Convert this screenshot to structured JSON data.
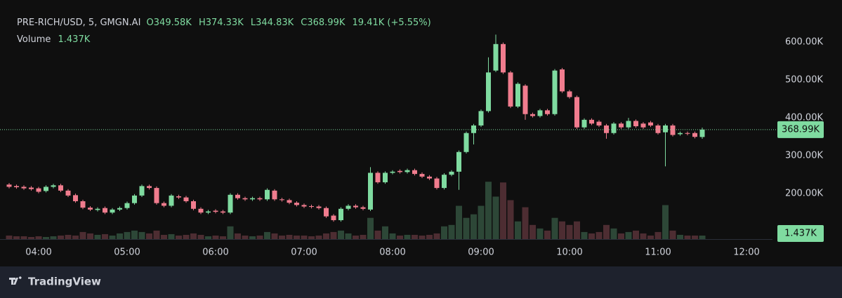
{
  "header": {
    "symbol": "PRE-RICH/USD, 5, GMGN.AI",
    "open": "O349.58K",
    "high": "H374.33K",
    "low": "L344.83K",
    "close": "C368.99K",
    "change": "19.41K (+5.55%)",
    "volume_title": "Volume"
  },
  "branding": "TradingView",
  "chart_data": {
    "type": "candlestick",
    "up_color": "#7fdba0",
    "down_color": "#f07c8e",
    "ylim": [
      80000,
      628000
    ],
    "yticks": [
      {
        "value": 200000,
        "label": "200.00K"
      },
      {
        "value": 300000,
        "label": "300.00K"
      },
      {
        "value": 400000,
        "label": "400.00K"
      },
      {
        "value": 500000,
        "label": "500.00K"
      },
      {
        "value": 600000,
        "label": "600.00K"
      }
    ],
    "grid": false,
    "xticks": [
      "04:00",
      "05:00",
      "06:00",
      "07:00",
      "08:00",
      "09:00",
      "10:00",
      "11:00",
      "12:00"
    ],
    "open": [
      224000,
      220000,
      218000,
      216000,
      214000,
      207000,
      218000,
      222000,
      208000,
      196000,
      180000,
      163000,
      157000,
      162000,
      150000,
      158000,
      162000,
      175000,
      195000,
      220000,
      215000,
      175000,
      168000,
      193000,
      190000,
      180000,
      160000,
      150000,
      155000,
      153000,
      150000,
      197000,
      188000,
      185000,
      188000,
      185000,
      208000,
      185000,
      183000,
      176000,
      170000,
      167000,
      166000,
      162000,
      142000,
      130000,
      160000,
      168000,
      164000,
      158000,
      255000,
      230000,
      255000,
      260000,
      257000,
      262000,
      252000,
      245000,
      240000,
      215000,
      250000,
      258000,
      310000,
      360000,
      380000,
      418000,
      525000,
      595000,
      520000,
      430000,
      485000,
      410000,
      405000,
      420000,
      410000,
      528000,
      470000,
      455000,
      375000,
      395000,
      390000,
      380000,
      360000,
      385000,
      375000,
      392000,
      385000,
      388000,
      380000,
      362000,
      380000,
      357000,
      360000,
      360000,
      349580
    ],
    "high": [
      228000,
      224000,
      222000,
      220000,
      218000,
      222000,
      226000,
      226000,
      212000,
      200000,
      184000,
      167000,
      164000,
      166000,
      162000,
      166000,
      179000,
      199000,
      224000,
      224000,
      219000,
      179000,
      199000,
      197000,
      194000,
      184000,
      164000,
      157000,
      159000,
      157000,
      201000,
      201000,
      192000,
      192000,
      192000,
      214000,
      212000,
      189000,
      187000,
      180000,
      174000,
      171000,
      170000,
      166000,
      146000,
      164000,
      172000,
      172000,
      168000,
      270000,
      259000,
      259000,
      262000,
      264000,
      266000,
      266000,
      256000,
      249000,
      244000,
      254000,
      262000,
      314000,
      364000,
      384000,
      422000,
      560000,
      620000,
      599000,
      524000,
      494000,
      489000,
      414000,
      424000,
      424000,
      529000,
      532000,
      474000,
      459000,
      399000,
      399000,
      394000,
      384000,
      389000,
      389000,
      400000,
      396000,
      389000,
      392000,
      384000,
      384000,
      384000,
      364000,
      364000,
      364000,
      374330
    ],
    "low": [
      214000,
      213000,
      210000,
      208000,
      201000,
      203000,
      214000,
      204000,
      191000,
      176000,
      159000,
      154000,
      153000,
      146000,
      146000,
      154000,
      158000,
      171000,
      191000,
      211000,
      171000,
      164000,
      164000,
      186000,
      176000,
      156000,
      146000,
      146000,
      148000,
      146000,
      146000,
      184000,
      181000,
      181000,
      181000,
      181000,
      181000,
      179000,
      172000,
      166000,
      162000,
      161000,
      158000,
      136000,
      126000,
      126000,
      156000,
      160000,
      156000,
      154000,
      226000,
      226000,
      251000,
      253000,
      253000,
      248000,
      241000,
      236000,
      211000,
      211000,
      246000,
      210000,
      306000,
      330000,
      376000,
      414000,
      521000,
      516000,
      426000,
      426000,
      395000,
      401000,
      401000,
      406000,
      406000,
      466000,
      451000,
      371000,
      371000,
      381000,
      376000,
      345000,
      356000,
      371000,
      371000,
      374000,
      371000,
      376000,
      356000,
      272000,
      351000,
      353000,
      354000,
      346000,
      344830
    ],
    "close": [
      218000,
      217000,
      214000,
      212000,
      205000,
      218000,
      222000,
      208000,
      195000,
      180000,
      163000,
      158000,
      160000,
      150000,
      158000,
      162000,
      175000,
      195000,
      220000,
      215000,
      175000,
      168000,
      195000,
      190000,
      180000,
      160000,
      150000,
      153000,
      152000,
      150000,
      197000,
      188000,
      185000,
      188000,
      185000,
      210000,
      185000,
      183000,
      176000,
      170000,
      166000,
      165000,
      162000,
      140000,
      130000,
      160000,
      168000,
      164000,
      160000,
      255000,
      230000,
      255000,
      258000,
      257000,
      262000,
      252000,
      245000,
      240000,
      215000,
      250000,
      258000,
      310000,
      360000,
      380000,
      418000,
      520000,
      595000,
      520000,
      430000,
      490000,
      410000,
      405000,
      420000,
      410000,
      525000,
      470000,
      455000,
      375000,
      395000,
      385000,
      380000,
      360000,
      385000,
      375000,
      392000,
      378000,
      375000,
      380000,
      360000,
      380000,
      355000,
      360000,
      358000,
      350000,
      368990
    ],
    "volume": [
      1450,
      1160,
      1160,
      870,
      1160,
      870,
      1160,
      1450,
      1740,
      1450,
      2900,
      2320,
      1740,
      2030,
      1450,
      2320,
      2900,
      3480,
      2900,
      2320,
      3480,
      1740,
      2030,
      1450,
      1740,
      2320,
      1740,
      1160,
      1450,
      1160,
      5220,
      2320,
      1450,
      1160,
      1450,
      2900,
      2320,
      1450,
      1740,
      1450,
      1450,
      1160,
      1450,
      2320,
      2900,
      3480,
      2320,
      1450,
      1740,
      8700,
      3480,
      5220,
      2320,
      1450,
      1740,
      1740,
      1450,
      1740,
      2320,
      5220,
      5800,
      13630,
      8700,
      10150,
      13630,
      23490,
      17400,
      23200,
      15950,
      7250,
      13050,
      5800,
      4350,
      3480,
      8700,
      7250,
      5800,
      7250,
      2900,
      2320,
      2900,
      5800,
      4350,
      2320,
      2900,
      3480,
      2320,
      1450,
      2900,
      13920,
      3480,
      1740,
      1450,
      1450,
      1437
    ],
    "vlim": [
      0,
      85000
    ],
    "volume_label": "1.437K",
    "last_price_label": "368.99K"
  }
}
